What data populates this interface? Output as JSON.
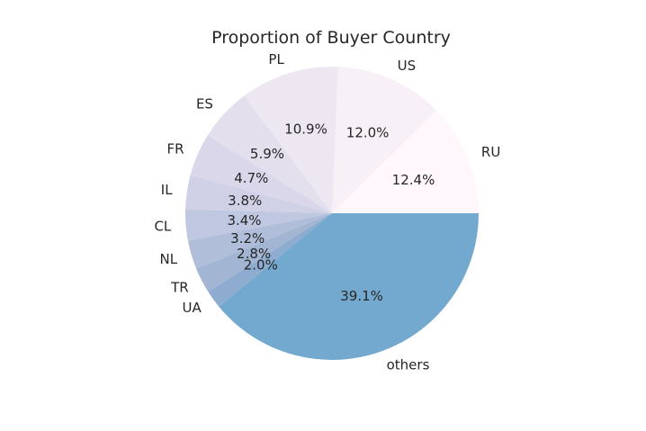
{
  "chart_data": {
    "type": "pie",
    "title": "Proportion of Buyer Country",
    "categories": [
      "RU",
      "US",
      "PL",
      "ES",
      "FR",
      "IL",
      "CL",
      "NL",
      "TR",
      "UA",
      "others"
    ],
    "values": [
      12.4,
      12.0,
      10.9,
      5.9,
      4.7,
      3.8,
      3.4,
      3.2,
      2.8,
      2.0,
      39.1
    ],
    "value_labels": [
      "12.4%",
      "12.0%",
      "10.9%",
      "5.9%",
      "4.7%",
      "3.8%",
      "3.4%",
      "3.2%",
      "2.8%",
      "2.0%",
      "39.1%"
    ],
    "start_angle_deg": 0,
    "direction": "counterclockwise",
    "colors": [
      "#fff7fb",
      "#f7f0f7",
      "#ede7f2",
      "#e3dfed",
      "#d9d7e9",
      "#d0d1e6",
      "#c0c7e0",
      "#b1bed9",
      "#a2b5d3",
      "#8eaccf",
      "#74a9cf"
    ]
  }
}
